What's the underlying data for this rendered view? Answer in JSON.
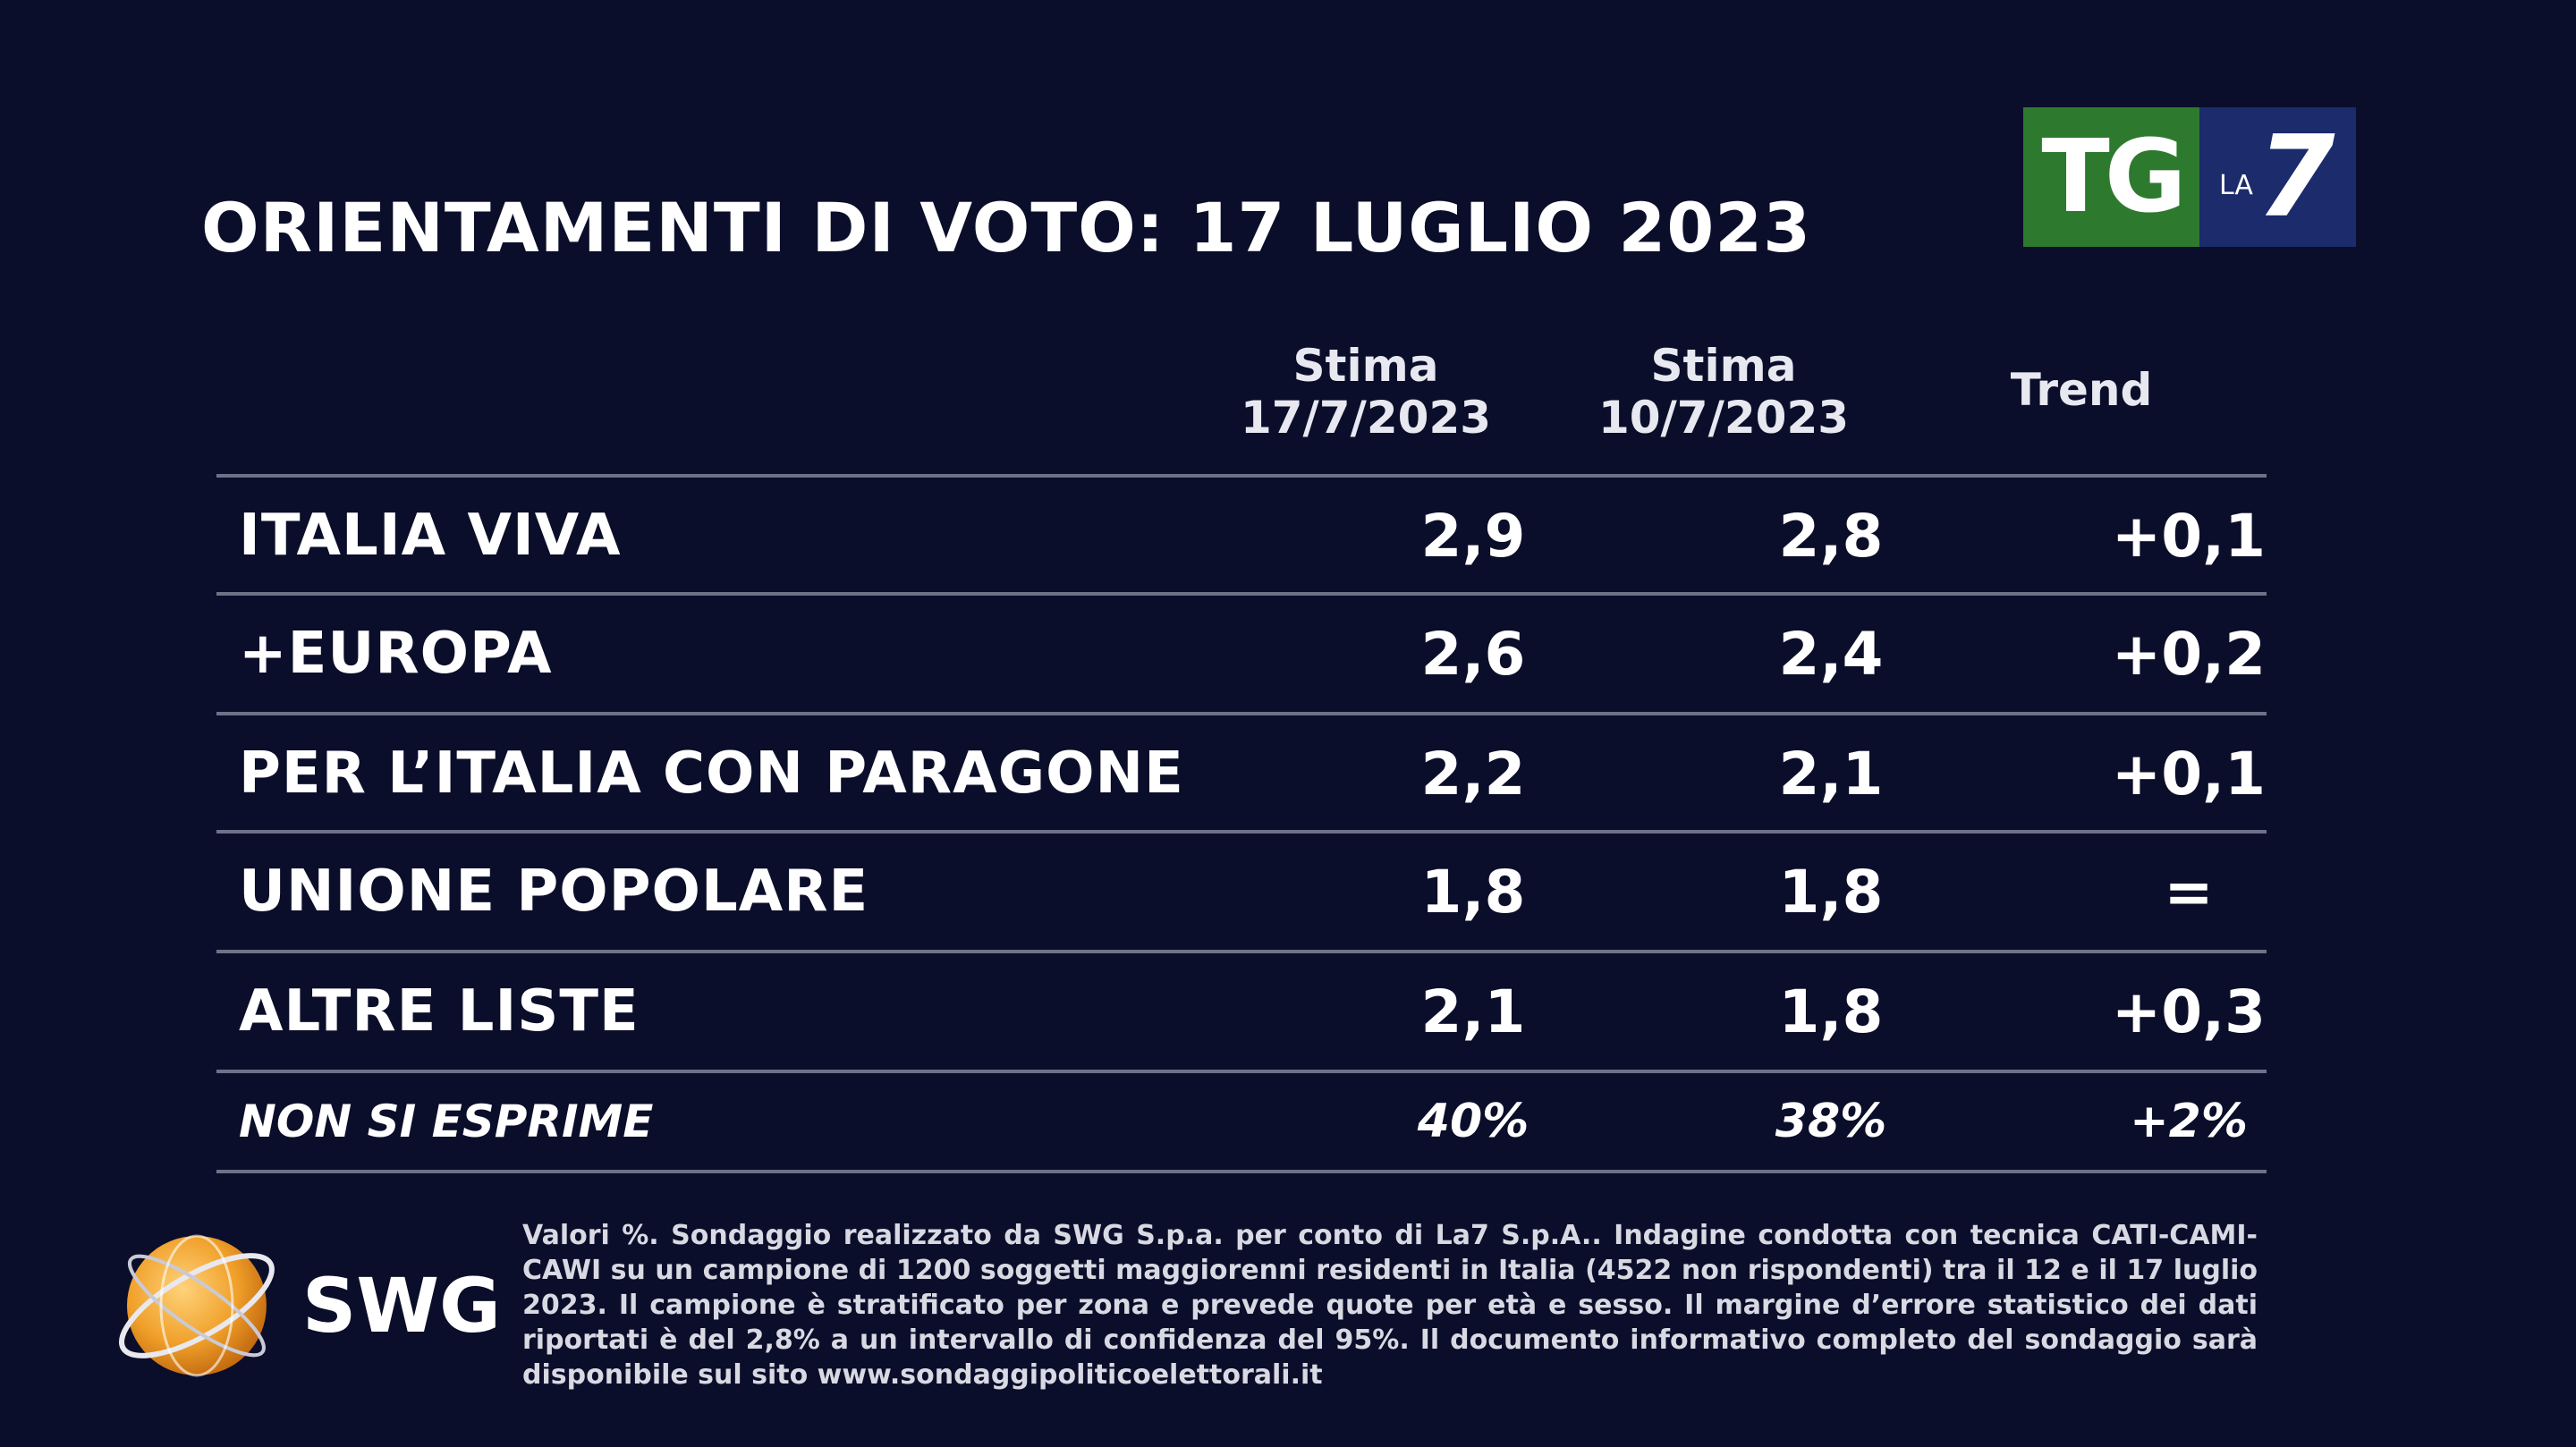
{
  "title": "ORIENTAMENTI DI VOTO: 17 LUGLIO 2023",
  "logo": {
    "tg": "TG",
    "la": "LA",
    "seven": "7"
  },
  "columns": {
    "c1_line1": "Stima",
    "c1_line2": "17/7/2023",
    "c2_line1": "Stima",
    "c2_line2": "10/7/2023",
    "c3": "Trend"
  },
  "rows": [
    {
      "label": "ITALIA VIVA",
      "v1": "2,9",
      "v2": "2,8",
      "trend": "+0,1"
    },
    {
      "label": "+EUROPA",
      "v1": "2,6",
      "v2": "2,4",
      "trend": "+0,2"
    },
    {
      "label": "PER L’ITALIA CON PARAGONE",
      "v1": "2,2",
      "v2": "2,1",
      "trend": "+0,1"
    },
    {
      "label": "UNIONE POPOLARE",
      "v1": "1,8",
      "v2": "1,8",
      "trend": "="
    },
    {
      "label": "ALTRE LISTE",
      "v1": "2,1",
      "v2": "1,8",
      "trend": "+0,3"
    },
    {
      "label": "NON SI ESPRIME",
      "v1": "40%",
      "v2": "38%",
      "trend": "+2%"
    }
  ],
  "swg": {
    "name": "SWG"
  },
  "footnote": "Valori %. Sondaggio realizzato da SWG S.p.a. per conto di La7 S.p.A.. Indagine condotta con tecnica CATI-CAMI-CAWI su un campione di 1200 soggetti maggiorenni residenti in Italia (4522 non rispondenti) tra il 12 e il 17 luglio 2023. Il campione è stratificato per zona e prevede quote per età e sesso. Il margine d’errore statistico dei dati riportati è del 2,8% a un intervallo di confidenza del 95%. Il documento informativo completo del sondaggio sarà disponibile sul sito www.sondaggipoliticoelettorali.it",
  "colors": {
    "background": "#0b0e2a",
    "tg_green": "#2d7a2e",
    "la7_blue": "#1c2b6b",
    "swg_orange": "#f0a02a",
    "rule": "#6e7286"
  },
  "chart_data": {
    "type": "table",
    "title": "ORIENTAMENTI DI VOTO: 17 LUGLIO 2023",
    "columns": [
      "Stima 17/7/2023",
      "Stima 10/7/2023",
      "Trend"
    ],
    "categories": [
      "ITALIA VIVA",
      "+EUROPA",
      "PER L’ITALIA CON PARAGONE",
      "UNIONE POPOLARE",
      "ALTRE LISTE",
      "NON SI ESPRIME"
    ],
    "series": [
      {
        "name": "Stima 17/7/2023",
        "values": [
          2.9,
          2.6,
          2.2,
          1.8,
          2.1,
          40
        ]
      },
      {
        "name": "Stima 10/7/2023",
        "values": [
          2.8,
          2.4,
          2.1,
          1.8,
          1.8,
          38
        ]
      },
      {
        "name": "Trend",
        "values": [
          0.1,
          0.2,
          0.1,
          0,
          0.3,
          2
        ]
      }
    ]
  }
}
